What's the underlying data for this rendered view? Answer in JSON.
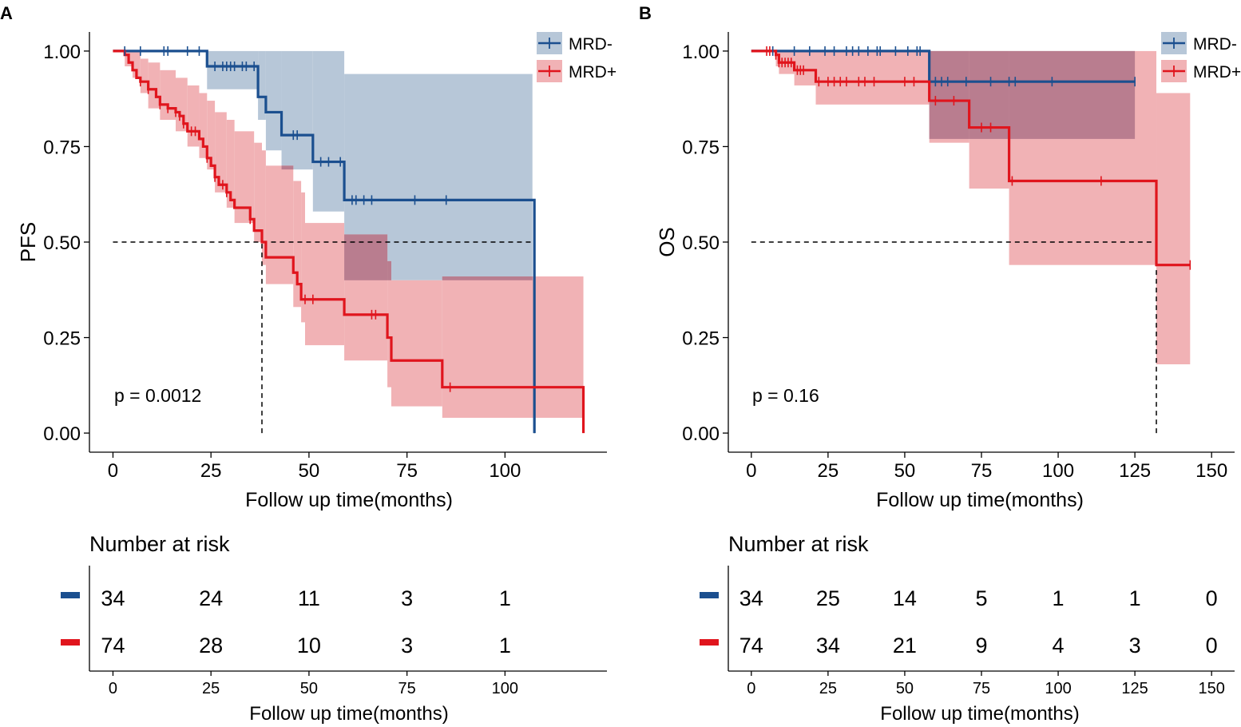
{
  "colors": {
    "mrd_neg": "#1B4F8F",
    "mrd_neg_fill": "#B7C7D8",
    "mrd_pos": "#E0151D",
    "mrd_pos_fill": "#F1B2B5",
    "overlap_fill": "#B97D8F",
    "axis": "#000000"
  },
  "chart_data": [
    {
      "panel_label": "A",
      "type": "line",
      "subtype": "kaplan-meier",
      "xlabel": "Follow up time(months)",
      "ylabel": "PFS",
      "xlim": [
        -6,
        126
      ],
      "ylim": [
        -0.05,
        1.05
      ],
      "xticks": [
        0,
        25,
        50,
        75,
        100
      ],
      "xtick_labels": [
        "0",
        "25",
        "50",
        "75",
        "100"
      ],
      "yticks": [
        0,
        0.25,
        0.5,
        0.75,
        1
      ],
      "ytick_labels": [
        "0.00",
        "0.25",
        "0.50",
        "0.75",
        "1.00"
      ],
      "pvalue": "p = 0.0012",
      "legend": [
        "MRD-",
        "MRD+"
      ],
      "legend_position": "top-right",
      "median_lines": [
        [
          0,
          0.5,
          107.5,
          0.5
        ],
        [
          38,
          0,
          38,
          0.5
        ],
        [
          107.5,
          0,
          107.5,
          0.5
        ]
      ],
      "series": [
        {
          "name": "MRD-",
          "color_key": "mrd_neg",
          "steps": [
            [
              0,
              1.0
            ],
            [
              24,
              0.96
            ],
            [
              37,
              0.88
            ],
            [
              39,
              0.84
            ],
            [
              43,
              0.78
            ],
            [
              51,
              0.71
            ],
            [
              59,
              0.61
            ],
            [
              107.5,
              0.0
            ]
          ],
          "end_x": 107.5,
          "censor_x": [
            3,
            7,
            13,
            14,
            19,
            22,
            26,
            28,
            29,
            30,
            31,
            33,
            34,
            36,
            46,
            47,
            53,
            55,
            58,
            61,
            62,
            64,
            66,
            77,
            85
          ],
          "ci": [
            [
              0,
              1.0,
              1.0
            ],
            [
              24,
              0.9,
              1.0
            ],
            [
              37,
              0.82,
              1.0
            ],
            [
              39,
              0.74,
              1.0
            ],
            [
              43,
              0.69,
              1.0
            ],
            [
              51,
              0.58,
              1.0
            ],
            [
              59,
              0.4,
              0.94
            ],
            [
              107,
              0.4,
              0.94
            ]
          ]
        },
        {
          "name": "MRD+",
          "color_key": "mrd_pos",
          "steps": [
            [
              0,
              1.0
            ],
            [
              3,
              0.99
            ],
            [
              4,
              0.97
            ],
            [
              5,
              0.95
            ],
            [
              6,
              0.93
            ],
            [
              7,
              0.92
            ],
            [
              9,
              0.9
            ],
            [
              11,
              0.88
            ],
            [
              12,
              0.86
            ],
            [
              14,
              0.85
            ],
            [
              16,
              0.84
            ],
            [
              17,
              0.83
            ],
            [
              18,
              0.81
            ],
            [
              19,
              0.79
            ],
            [
              22,
              0.77
            ],
            [
              23,
              0.75
            ],
            [
              24,
              0.72
            ],
            [
              25,
              0.7
            ],
            [
              26,
              0.67
            ],
            [
              27,
              0.65
            ],
            [
              29,
              0.63
            ],
            [
              30,
              0.61
            ],
            [
              31,
              0.59
            ],
            [
              35,
              0.56
            ],
            [
              36,
              0.53
            ],
            [
              38,
              0.5
            ],
            [
              39,
              0.46
            ],
            [
              46,
              0.42
            ],
            [
              47,
              0.39
            ],
            [
              48,
              0.35
            ],
            [
              59,
              0.31
            ],
            [
              70,
              0.25
            ],
            [
              71,
              0.19
            ],
            [
              84,
              0.12
            ],
            [
              120,
              0.0
            ]
          ],
          "end_x": 120,
          "censor_x": [
            7,
            9,
            12,
            14,
            16,
            17,
            18,
            20,
            21,
            24,
            26,
            28,
            29,
            35,
            49,
            51,
            66,
            67,
            86
          ],
          "ci": [
            [
              0,
              1.0,
              1.0
            ],
            [
              3,
              0.96,
              1.0
            ],
            [
              5,
              0.93,
              1.0
            ],
            [
              7,
              0.89,
              0.98
            ],
            [
              9,
              0.85,
              0.97
            ],
            [
              12,
              0.82,
              0.95
            ],
            [
              16,
              0.79,
              0.93
            ],
            [
              19,
              0.75,
              0.91
            ],
            [
              22,
              0.72,
              0.89
            ],
            [
              24,
              0.69,
              0.87
            ],
            [
              26,
              0.63,
              0.84
            ],
            [
              29,
              0.59,
              0.82
            ],
            [
              31,
              0.55,
              0.79
            ],
            [
              36,
              0.5,
              0.76
            ],
            [
              38,
              0.44,
              0.74
            ],
            [
              39,
              0.39,
              0.7
            ],
            [
              46,
              0.33,
              0.66
            ],
            [
              48,
              0.29,
              0.63
            ],
            [
              49,
              0.23,
              0.55
            ],
            [
              59,
              0.19,
              0.52
            ],
            [
              70,
              0.12,
              0.45
            ],
            [
              71,
              0.07,
              0.4
            ],
            [
              84,
              0.04,
              0.41
            ],
            [
              120,
              0.04,
              0.41
            ]
          ]
        }
      ],
      "risk_table": {
        "title": "Number at risk",
        "time_points": [
          0,
          25,
          50,
          75,
          100
        ],
        "rows": [
          {
            "name": "MRD-",
            "color_key": "mrd_neg",
            "counts": [
              "34",
              "24",
              "11",
              "3",
              "1"
            ]
          },
          {
            "name": "MRD+",
            "color_key": "mrd_pos",
            "counts": [
              "74",
              "28",
              "10",
              "3",
              "1"
            ]
          }
        ],
        "xlabel": "Follow up time(months)"
      }
    },
    {
      "panel_label": "B",
      "type": "line",
      "subtype": "kaplan-meier",
      "xlabel": "Follow up time(months)",
      "ylabel": "OS",
      "xlim": [
        -7.5,
        157.5
      ],
      "ylim": [
        -0.05,
        1.05
      ],
      "xticks": [
        0,
        25,
        50,
        75,
        100,
        125,
        150
      ],
      "xtick_labels": [
        "0",
        "25",
        "50",
        "75",
        "100",
        "125",
        "150"
      ],
      "yticks": [
        0,
        0.25,
        0.5,
        0.75,
        1
      ],
      "ytick_labels": [
        "0.00",
        "0.25",
        "0.50",
        "0.75",
        "1.00"
      ],
      "pvalue": "p = 0.16",
      "legend": [
        "MRD-",
        "MRD+"
      ],
      "legend_position": "top-right",
      "median_lines": [
        [
          0,
          0.5,
          132,
          0.5
        ],
        [
          132,
          0,
          132,
          0.5
        ]
      ],
      "series": [
        {
          "name": "MRD-",
          "color_key": "mrd_neg",
          "steps": [
            [
              0,
              1.0
            ],
            [
              58,
              0.92
            ]
          ],
          "end_x": 125,
          "censor_x": [
            7,
            14,
            19,
            24,
            27,
            31,
            33,
            35,
            38,
            41,
            42,
            47,
            51,
            54,
            55,
            60,
            62,
            64,
            70,
            78,
            84,
            86,
            98,
            125
          ],
          "ci": [
            [
              0,
              1.0,
              1.0
            ],
            [
              58,
              0.77,
              1.0
            ],
            [
              125,
              0.77,
              1.0
            ]
          ]
        },
        {
          "name": "MRD+",
          "color_key": "mrd_pos",
          "steps": [
            [
              0,
              1.0
            ],
            [
              8,
              0.99
            ],
            [
              9,
              0.97
            ],
            [
              14,
              0.95
            ],
            [
              21,
              0.92
            ],
            [
              58,
              0.87
            ],
            [
              71,
              0.8
            ],
            [
              84,
              0.66
            ],
            [
              132,
              0.44
            ]
          ],
          "end_x": 143,
          "censor_x": [
            5,
            6,
            8,
            9,
            10,
            11,
            12,
            13,
            15,
            16,
            17,
            22,
            25,
            27,
            29,
            31,
            35,
            37,
            40,
            50,
            53,
            60,
            66,
            75,
            78,
            85,
            114,
            143
          ],
          "ci": [
            [
              0,
              1.0,
              1.0
            ],
            [
              8,
              0.96,
              1.0
            ],
            [
              9,
              0.94,
              1.0
            ],
            [
              14,
              0.91,
              1.0
            ],
            [
              21,
              0.86,
              1.0
            ],
            [
              58,
              0.76,
              1.0
            ],
            [
              71,
              0.64,
              1.0
            ],
            [
              84,
              0.44,
              1.0
            ],
            [
              132,
              0.18,
              0.89
            ],
            [
              143,
              0.18,
              0.89
            ]
          ]
        }
      ],
      "risk_table": {
        "title": "Number at risk",
        "time_points": [
          0,
          25,
          50,
          75,
          100,
          125,
          150
        ],
        "rows": [
          {
            "name": "MRD-",
            "color_key": "mrd_neg",
            "counts": [
              "34",
              "25",
              "14",
              "5",
              "1",
              "1",
              "0"
            ]
          },
          {
            "name": "MRD+",
            "color_key": "mrd_pos",
            "counts": [
              "74",
              "34",
              "21",
              "9",
              "4",
              "3",
              "0"
            ]
          }
        ],
        "xlabel": "Follow up time(months)"
      }
    }
  ]
}
